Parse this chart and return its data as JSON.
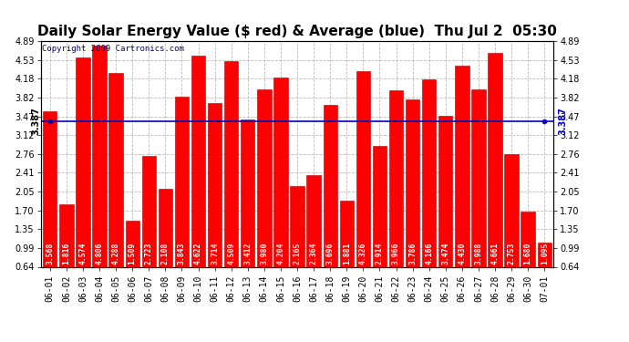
{
  "title": "Daily Solar Energy Value ($ red) & Average (blue)  Thu Jul 2  05:30",
  "copyright": "Copyright 2009 Cartronics.com",
  "average": 3.387,
  "bar_color": "#FF0000",
  "bar_edge_color": "#AA0000",
  "avg_line_color": "#0000BB",
  "background_color": "#FFFFFF",
  "plot_bg_color": "#FFFFFF",
  "grid_color": "#BBBBBB",
  "title_color": "#000000",
  "ylim": [
    0.64,
    4.89
  ],
  "yticks": [
    0.64,
    0.99,
    1.35,
    1.7,
    2.05,
    2.41,
    2.76,
    3.12,
    3.47,
    3.82,
    4.18,
    4.53,
    4.89
  ],
  "categories": [
    "06-01",
    "06-02",
    "06-03",
    "06-04",
    "06-05",
    "06-06",
    "06-07",
    "06-08",
    "06-09",
    "06-10",
    "06-11",
    "06-12",
    "06-13",
    "06-14",
    "06-15",
    "06-16",
    "06-17",
    "06-18",
    "06-19",
    "06-20",
    "06-21",
    "06-22",
    "06-23",
    "06-24",
    "06-25",
    "06-26",
    "06-27",
    "06-28",
    "06-29",
    "06-30",
    "07-01"
  ],
  "values": [
    3.568,
    1.816,
    4.574,
    4.806,
    4.288,
    1.509,
    2.723,
    2.108,
    3.843,
    4.622,
    3.714,
    4.509,
    3.412,
    3.98,
    4.204,
    2.165,
    2.364,
    3.696,
    1.881,
    4.326,
    2.914,
    3.966,
    3.786,
    4.166,
    3.474,
    4.43,
    3.988,
    4.661,
    2.753,
    1.68,
    1.095
  ],
  "bar_labels": [
    "3.568",
    "1.816",
    "4.574",
    "4.806",
    "4.288",
    "1.509",
    "2.723",
    "2.108",
    "3.843",
    "4.622",
    "3.714",
    "4.509",
    "3.412",
    "3.980",
    "4.204",
    "2.165",
    "2.364",
    "3.696",
    "1.881",
    "4.326",
    "2.914",
    "3.966",
    "3.786",
    "4.166",
    "3.474",
    "4.430",
    "3.988",
    "4.661",
    "2.753",
    "1.680",
    "1.095"
  ],
  "title_fontsize": 11,
  "tick_fontsize": 7,
  "bar_label_fontsize": 5.8,
  "avg_fontsize": 7,
  "copyright_fontsize": 6.5
}
